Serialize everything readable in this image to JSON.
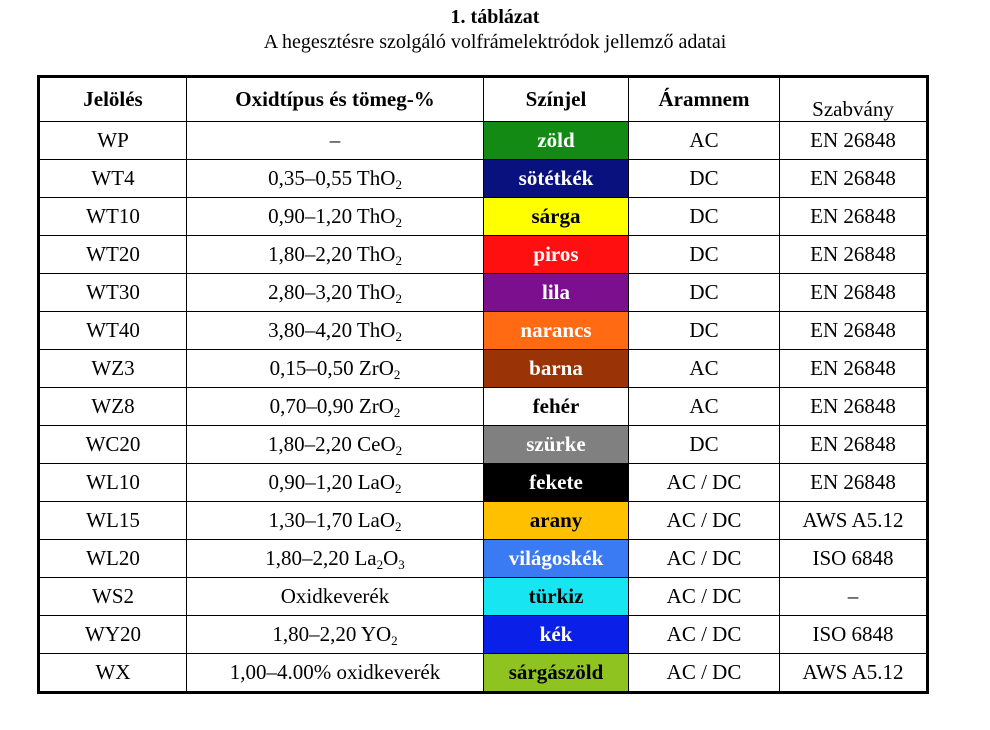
{
  "title": "1. táblázat",
  "subtitle": "A hegesztésre szolgáló volfrámelektródok jellemző adatai",
  "headers": [
    "Jelölés",
    "Oxidtípus és tömeg-%",
    "Színjel",
    "Áramnem",
    "Szabvány"
  ],
  "rows": [
    {
      "code": "WP",
      "oxide": {
        "pre": "–",
        "sub1": "",
        "mid": "",
        "sub2": ""
      },
      "color_name": "zöld",
      "bg": "#138a14",
      "fg": "#ffffff",
      "current": "AC",
      "standard": "EN 26848"
    },
    {
      "code": "WT4",
      "oxide": {
        "pre": "0,35–0,55 ThO",
        "sub1": "2",
        "mid": "",
        "sub2": ""
      },
      "color_name": "sötétkék",
      "bg": "#08117e",
      "fg": "#ffffff",
      "current": "DC",
      "standard": "EN 26848"
    },
    {
      "code": "WT10",
      "oxide": {
        "pre": "0,90–1,20 ThO",
        "sub1": "2",
        "mid": "",
        "sub2": ""
      },
      "color_name": "sárga",
      "bg": "#ffff00",
      "fg": "#000000",
      "current": "DC",
      "standard": "EN 26848"
    },
    {
      "code": "WT20",
      "oxide": {
        "pre": "1,80–2,20 ThO",
        "sub1": "2",
        "mid": "",
        "sub2": ""
      },
      "color_name": "piros",
      "bg": "#ff0f0f",
      "fg": "#ffffff",
      "current": "DC",
      "standard": "EN 26848"
    },
    {
      "code": "WT30",
      "oxide": {
        "pre": "2,80–3,20 ThO",
        "sub1": "2",
        "mid": "",
        "sub2": ""
      },
      "color_name": "lila",
      "bg": "#7c0f8e",
      "fg": "#ffffff",
      "current": "DC",
      "standard": "EN 26848"
    },
    {
      "code": "WT40",
      "oxide": {
        "pre": "3,80–4,20 ThO",
        "sub1": "2",
        "mid": "",
        "sub2": ""
      },
      "color_name": "narancs",
      "bg": "#ff6a12",
      "fg": "#ffffff",
      "current": "DC",
      "standard": "EN 26848"
    },
    {
      "code": "WZ3",
      "oxide": {
        "pre": "0,15–0,50 ZrO",
        "sub1": "2",
        "mid": "",
        "sub2": ""
      },
      "color_name": "barna",
      "bg": "#9a3306",
      "fg": "#ffffff",
      "current": "AC",
      "standard": "EN 26848"
    },
    {
      "code": "WZ8",
      "oxide": {
        "pre": "0,70–0,90 ZrO",
        "sub1": "2",
        "mid": "",
        "sub2": ""
      },
      "color_name": "fehér",
      "bg": "#ffffff",
      "fg": "#000000",
      "current": "AC",
      "standard": "EN 26848"
    },
    {
      "code": "WC20",
      "oxide": {
        "pre": "1,80–2,20 CeO",
        "sub1": "2",
        "mid": "",
        "sub2": ""
      },
      "color_name": "szürke",
      "bg": "#808080",
      "fg": "#ffffff",
      "current": "DC",
      "standard": "EN 26848"
    },
    {
      "code": "WL10",
      "oxide": {
        "pre": "0,90–1,20 LaO",
        "sub1": "2",
        "mid": "",
        "sub2": ""
      },
      "color_name": "fekete",
      "bg": "#000000",
      "fg": "#ffffff",
      "current": "AC / DC",
      "standard": "EN 26848"
    },
    {
      "code": "WL15",
      "oxide": {
        "pre": "1,30–1,70 LaO",
        "sub1": "2",
        "mid": "",
        "sub2": ""
      },
      "color_name": "arany",
      "bg": "#ffc000",
      "fg": "#000000",
      "current": "AC / DC",
      "standard": "AWS A5.12"
    },
    {
      "code": "WL20",
      "oxide": {
        "pre": "1,80–2,20 La",
        "sub1": "2",
        "mid": "O",
        "sub2": "3"
      },
      "color_name": "világoskék",
      "bg": "#3a7af2",
      "fg": "#ffffff",
      "current": "AC / DC",
      "standard": "ISO 6848"
    },
    {
      "code": "WS2",
      "oxide": {
        "pre": "Oxidkeverék",
        "sub1": "",
        "mid": "",
        "sub2": ""
      },
      "color_name": "türkiz",
      "bg": "#17e6f2",
      "fg": "#000000",
      "current": "AC / DC",
      "standard": "–"
    },
    {
      "code": "WY20",
      "oxide": {
        "pre": "1,80–2,20 YO",
        "sub1": "2",
        "mid": "",
        "sub2": ""
      },
      "color_name": "kék",
      "bg": "#0a1fe8",
      "fg": "#ffffff",
      "current": "AC / DC",
      "standard": "ISO 6848"
    },
    {
      "code": "WX",
      "oxide": {
        "pre": "1,00–4.00% oxidkeverék",
        "sub1": "",
        "mid": "",
        "sub2": ""
      },
      "color_name": "sárgászöld",
      "bg": "#8fc31f",
      "fg": "#000000",
      "current": "AC / DC",
      "standard": "AWS A5.12"
    }
  ]
}
